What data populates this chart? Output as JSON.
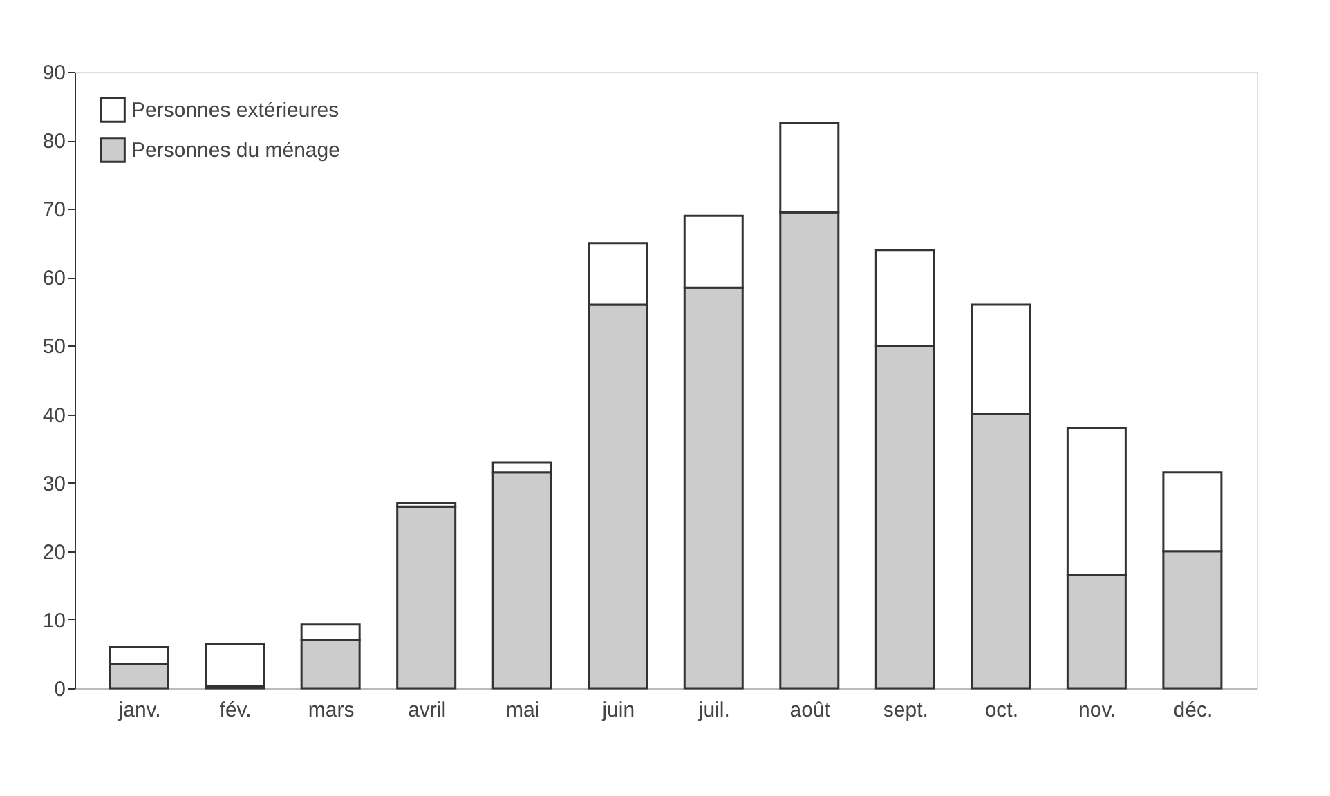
{
  "chart_data": {
    "type": "bar",
    "stacked": true,
    "categories": [
      "janv.",
      "fév.",
      "mars",
      "avril",
      "mai",
      "juin",
      "juil.",
      "août",
      "sept.",
      "oct.",
      "nov.",
      "déc."
    ],
    "series": [
      {
        "name": "Personnes du ménage",
        "color": "#cccccc",
        "values": [
          3.5,
          0.3,
          7,
          26.5,
          31.5,
          56,
          58.5,
          69.5,
          50,
          40,
          16.5,
          20
        ]
      },
      {
        "name": "Personnes extérieures",
        "color": "#ffffff",
        "values": [
          2.5,
          6.2,
          2.3,
          0.5,
          1.5,
          9,
          10.5,
          13,
          14,
          16,
          21.5,
          11.5
        ]
      }
    ],
    "ylim": [
      0,
      90
    ],
    "yticks": [
      0,
      10,
      20,
      30,
      40,
      50,
      60,
      70,
      80,
      90
    ],
    "grid": false,
    "legend": "top left"
  }
}
